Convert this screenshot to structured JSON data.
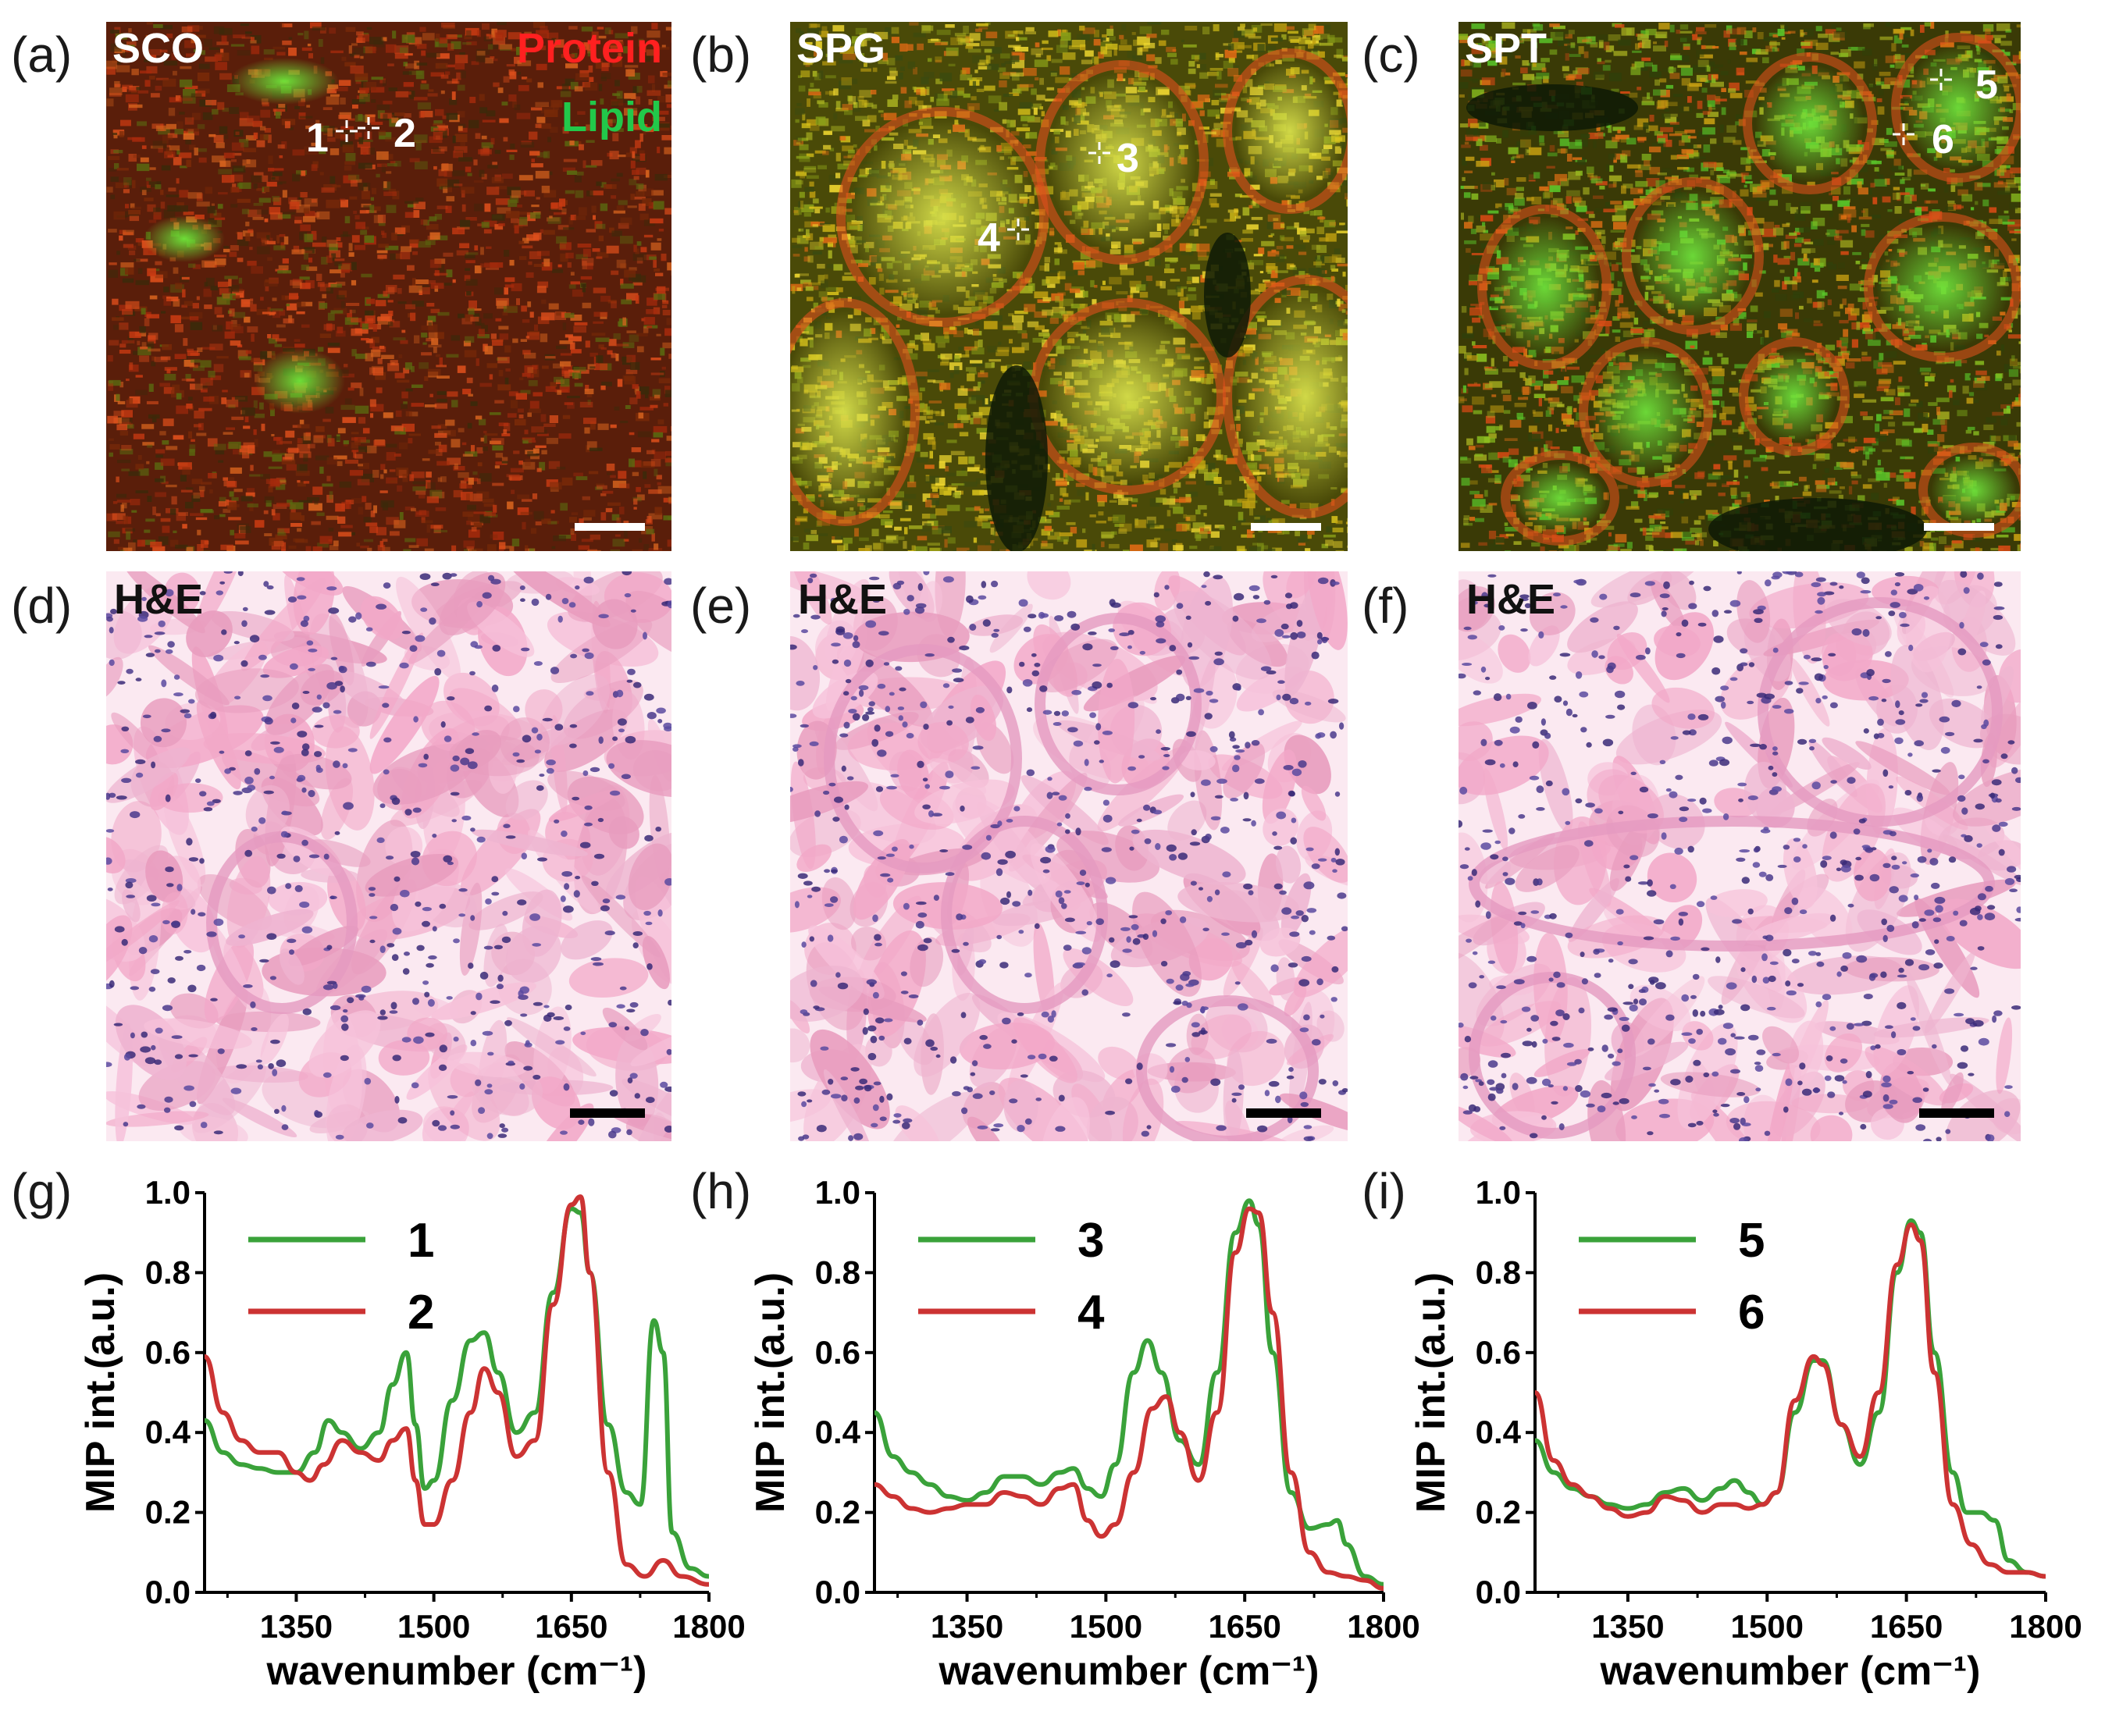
{
  "panels": {
    "a": {
      "letter": "(a)",
      "label": "SCO",
      "legend_protein": "Protein",
      "legend_lipid": "Lipid",
      "markers": [
        "1",
        "2"
      ]
    },
    "b": {
      "letter": "(b)",
      "label": "SPG",
      "markers": [
        "3",
        "4"
      ]
    },
    "c": {
      "letter": "(c)",
      "label": "SPT",
      "markers": [
        "5",
        "6"
      ]
    },
    "d": {
      "letter": "(d)",
      "label": "H&E"
    },
    "e": {
      "letter": "(e)",
      "label": "H&E"
    },
    "f": {
      "letter": "(f)",
      "label": "H&E"
    },
    "g": {
      "letter": "(g)"
    },
    "h": {
      "letter": "(h)"
    },
    "i": {
      "letter": "(i)"
    }
  },
  "colors": {
    "protein": "#ff2020",
    "lipid": "#22c84a",
    "series_green": "#3aa23a",
    "series_red": "#cc3333",
    "he_background": "#f4c6dc",
    "he_nuclei": "#4a3a8c"
  },
  "chart_data": [
    {
      "type": "line",
      "panel": "g",
      "xlabel": "wavenumber (cm⁻¹)",
      "ylabel": "MIP int.(a.u.)",
      "xlim": [
        1250,
        1800
      ],
      "ylim": [
        0,
        1.0
      ],
      "xticks": [
        "1350",
        "1500",
        "1650",
        "1800"
      ],
      "yticks": [
        "0.0",
        "0.2",
        "0.4",
        "0.6",
        "0.8",
        "1.0"
      ],
      "legend_position": "top-left",
      "series": [
        {
          "name": "1",
          "color": "#3aa23a",
          "x": [
            1250,
            1270,
            1290,
            1310,
            1330,
            1350,
            1370,
            1385,
            1400,
            1420,
            1440,
            1455,
            1470,
            1480,
            1490,
            1500,
            1520,
            1540,
            1555,
            1570,
            1590,
            1610,
            1630,
            1650,
            1660,
            1670,
            1690,
            1710,
            1725,
            1740,
            1750,
            1760,
            1780,
            1800
          ],
          "y": [
            0.43,
            0.35,
            0.32,
            0.31,
            0.3,
            0.3,
            0.35,
            0.43,
            0.4,
            0.36,
            0.4,
            0.52,
            0.6,
            0.42,
            0.26,
            0.28,
            0.48,
            0.63,
            0.65,
            0.55,
            0.4,
            0.45,
            0.75,
            0.96,
            0.95,
            0.8,
            0.42,
            0.25,
            0.22,
            0.68,
            0.6,
            0.15,
            0.06,
            0.04
          ]
        },
        {
          "name": "2",
          "color": "#cc3333",
          "x": [
            1250,
            1270,
            1290,
            1310,
            1330,
            1350,
            1365,
            1380,
            1400,
            1420,
            1440,
            1455,
            1470,
            1480,
            1490,
            1500,
            1520,
            1540,
            1555,
            1570,
            1590,
            1610,
            1630,
            1650,
            1660,
            1670,
            1690,
            1710,
            1730,
            1750,
            1770,
            1800
          ],
          "y": [
            0.59,
            0.45,
            0.38,
            0.35,
            0.35,
            0.3,
            0.28,
            0.32,
            0.38,
            0.35,
            0.33,
            0.38,
            0.41,
            0.28,
            0.17,
            0.17,
            0.28,
            0.45,
            0.56,
            0.5,
            0.34,
            0.38,
            0.72,
            0.97,
            0.99,
            0.8,
            0.3,
            0.07,
            0.04,
            0.08,
            0.04,
            0.02
          ]
        }
      ]
    },
    {
      "type": "line",
      "panel": "h",
      "xlabel": "wavenumber (cm⁻¹)",
      "ylabel": "MIP int.(a.u.)",
      "xlim": [
        1250,
        1800
      ],
      "ylim": [
        0,
        1.0
      ],
      "xticks": [
        "1350",
        "1500",
        "1650",
        "1800"
      ],
      "yticks": [
        "0.0",
        "0.2",
        "0.4",
        "0.6",
        "0.8",
        "1.0"
      ],
      "legend_position": "top-left",
      "series": [
        {
          "name": "3",
          "color": "#3aa23a",
          "x": [
            1250,
            1270,
            1290,
            1310,
            1330,
            1350,
            1370,
            1390,
            1410,
            1430,
            1450,
            1465,
            1480,
            1495,
            1510,
            1530,
            1545,
            1560,
            1580,
            1600,
            1620,
            1640,
            1655,
            1665,
            1680,
            1700,
            1720,
            1740,
            1750,
            1760,
            1780,
            1800
          ],
          "y": [
            0.45,
            0.34,
            0.3,
            0.27,
            0.24,
            0.23,
            0.25,
            0.29,
            0.29,
            0.27,
            0.3,
            0.31,
            0.26,
            0.24,
            0.32,
            0.55,
            0.63,
            0.55,
            0.38,
            0.32,
            0.55,
            0.9,
            0.98,
            0.92,
            0.6,
            0.25,
            0.16,
            0.17,
            0.18,
            0.12,
            0.04,
            0.02
          ]
        },
        {
          "name": "4",
          "color": "#cc3333",
          "x": [
            1250,
            1270,
            1290,
            1310,
            1330,
            1350,
            1370,
            1390,
            1410,
            1430,
            1450,
            1465,
            1480,
            1495,
            1510,
            1530,
            1550,
            1565,
            1580,
            1600,
            1620,
            1640,
            1655,
            1665,
            1680,
            1700,
            1720,
            1740,
            1760,
            1780,
            1800
          ],
          "y": [
            0.27,
            0.24,
            0.21,
            0.2,
            0.21,
            0.22,
            0.22,
            0.25,
            0.24,
            0.22,
            0.26,
            0.27,
            0.18,
            0.14,
            0.17,
            0.3,
            0.46,
            0.49,
            0.4,
            0.28,
            0.45,
            0.85,
            0.96,
            0.95,
            0.7,
            0.3,
            0.1,
            0.05,
            0.04,
            0.03,
            0.01
          ]
        }
      ]
    },
    {
      "type": "line",
      "panel": "i",
      "xlabel": "wavenumber (cm⁻¹)",
      "ylabel": "MIP int.(a.u.)",
      "xlim": [
        1250,
        1800
      ],
      "ylim": [
        0,
        1.0
      ],
      "xticks": [
        "1350",
        "1500",
        "1650",
        "1800"
      ],
      "yticks": [
        "0.0",
        "0.2",
        "0.4",
        "0.6",
        "0.8",
        "1.0"
      ],
      "legend_position": "top-left",
      "series": [
        {
          "name": "5",
          "color": "#3aa23a",
          "x": [
            1250,
            1270,
            1290,
            1310,
            1330,
            1350,
            1370,
            1390,
            1410,
            1430,
            1450,
            1465,
            1480,
            1495,
            1510,
            1530,
            1550,
            1560,
            1580,
            1600,
            1620,
            1640,
            1655,
            1665,
            1680,
            1700,
            1715,
            1730,
            1745,
            1760,
            1780,
            1800
          ],
          "y": [
            0.38,
            0.3,
            0.26,
            0.24,
            0.22,
            0.21,
            0.22,
            0.25,
            0.26,
            0.23,
            0.26,
            0.28,
            0.25,
            0.22,
            0.25,
            0.45,
            0.58,
            0.58,
            0.42,
            0.32,
            0.45,
            0.8,
            0.93,
            0.9,
            0.6,
            0.3,
            0.2,
            0.2,
            0.18,
            0.08,
            0.05,
            0.04
          ]
        },
        {
          "name": "6",
          "color": "#cc3333",
          "x": [
            1250,
            1270,
            1290,
            1310,
            1330,
            1350,
            1370,
            1390,
            1410,
            1430,
            1450,
            1465,
            1480,
            1495,
            1510,
            1530,
            1550,
            1560,
            1580,
            1600,
            1620,
            1640,
            1655,
            1665,
            1680,
            1700,
            1720,
            1740,
            1760,
            1780,
            1800
          ],
          "y": [
            0.5,
            0.33,
            0.27,
            0.24,
            0.21,
            0.19,
            0.2,
            0.24,
            0.23,
            0.2,
            0.22,
            0.22,
            0.21,
            0.22,
            0.25,
            0.48,
            0.59,
            0.57,
            0.42,
            0.34,
            0.5,
            0.82,
            0.92,
            0.88,
            0.55,
            0.22,
            0.12,
            0.07,
            0.05,
            0.05,
            0.04
          ]
        }
      ]
    }
  ]
}
